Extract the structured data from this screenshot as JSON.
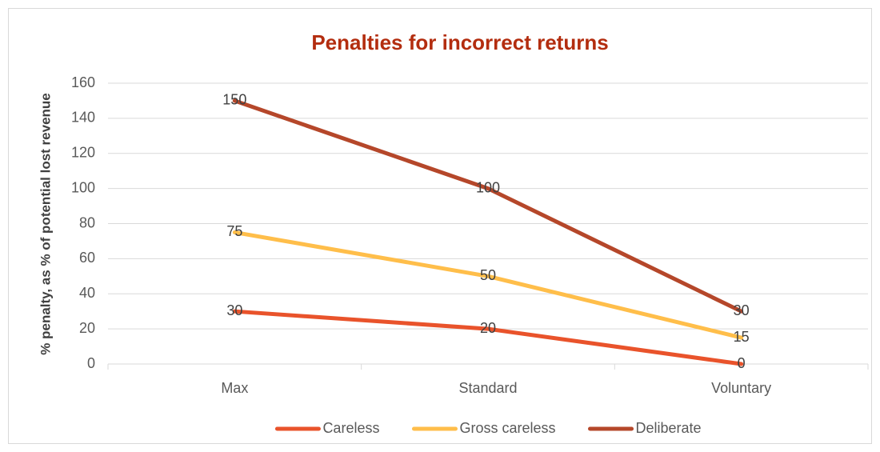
{
  "chart_data": {
    "type": "line",
    "title": "Penalties for incorrect returns",
    "y_label": "% penalty, as % of potential lost revenue",
    "categories": [
      "Max",
      "Standard",
      "Voluntary"
    ],
    "series": [
      {
        "name": "Careless",
        "color": "#e9532b",
        "values": [
          30,
          20,
          0
        ]
      },
      {
        "name": "Gross careless",
        "color": "#ffbe4a",
        "values": [
          75,
          50,
          15
        ]
      },
      {
        "name": "Deliberate",
        "color": "#b5472a",
        "values": [
          150,
          100,
          30
        ]
      }
    ],
    "ylim": [
      0,
      160
    ],
    "yticks": [
      0,
      20,
      40,
      60,
      80,
      100,
      120,
      140,
      160
    ],
    "grid": true,
    "legend": "bottom",
    "data_labels": true
  }
}
